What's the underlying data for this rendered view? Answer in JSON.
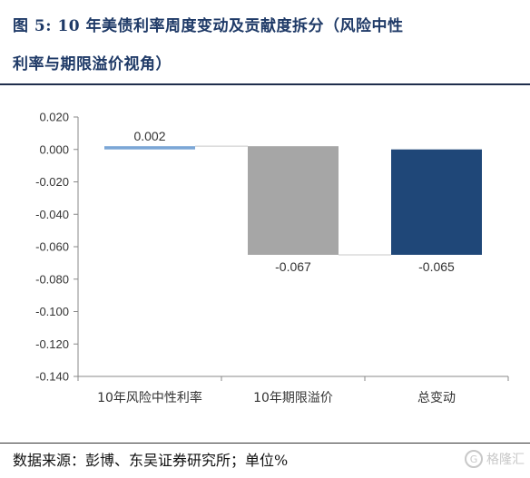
{
  "figure": {
    "title_line1": "图 5: 10 年美债利率周度变动及贡献度拆分（风险中性",
    "title_line2": "利率与期限溢价视角）",
    "source": "数据来源：彭博、东吴证券研究所；单位%",
    "watermark": "格隆汇"
  },
  "chart_data": {
    "type": "bar",
    "subtype": "waterfall",
    "categories": [
      "10年风险中性利率",
      "10年期限溢价",
      "总变动"
    ],
    "values": [
      0.002,
      -0.067,
      -0.065
    ],
    "data_labels": [
      "0.002",
      "-0.067",
      "-0.065"
    ],
    "ylim": [
      -0.14,
      0.02
    ],
    "yticks": [
      "0.020",
      "0.000",
      "-0.020",
      "-0.040",
      "-0.060",
      "-0.080",
      "-0.100",
      "-0.120",
      "-0.140"
    ],
    "grid": false,
    "legend": "none",
    "colors": [
      "#7ba6d6",
      "#a6a6a6",
      "#1f4778"
    ]
  }
}
